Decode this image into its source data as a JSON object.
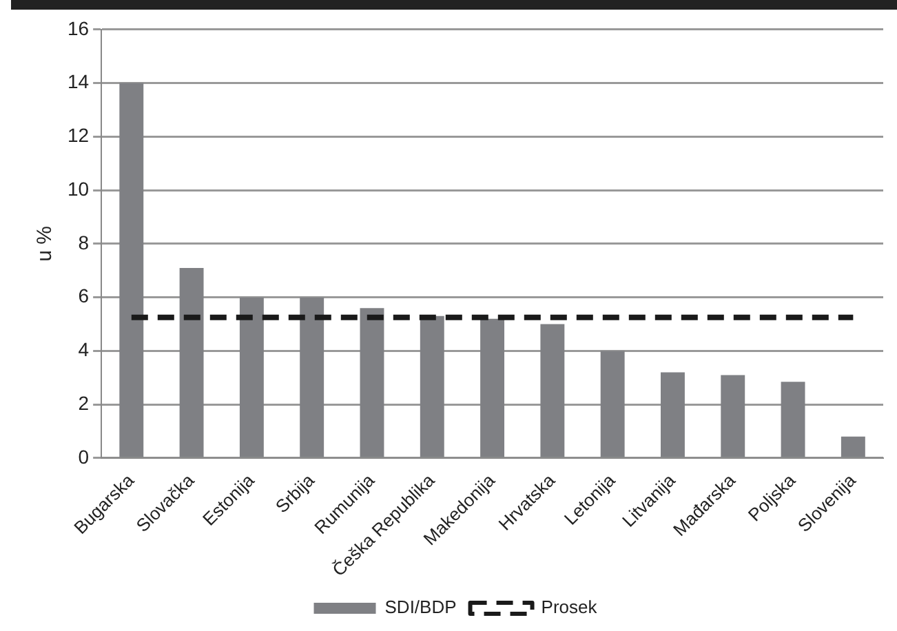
{
  "chart_data": {
    "type": "bar",
    "ylabel": "u %",
    "categories": [
      "Bugarska",
      "Slovačka",
      "Estonija",
      "Srbija",
      "Rumunija",
      "Češka Republika",
      "Makedonija",
      "Hrvatska",
      "Letonija",
      "Litvanija",
      "Mađarska",
      "Poljska",
      "Slovenija"
    ],
    "series": [
      {
        "name": "SDI/BDP",
        "color": "#7f8084",
        "values": [
          14,
          7.1,
          6.0,
          6.0,
          5.6,
          5.3,
          5.2,
          5.0,
          4.0,
          3.2,
          3.1,
          2.85,
          0.8
        ]
      },
      {
        "name": "Prosek",
        "type": "line",
        "color": "#1a1a1a",
        "line_style": "dashed",
        "marker": "none",
        "values": [
          5.25,
          5.25,
          5.25,
          5.25,
          5.25,
          5.25,
          5.25,
          5.25,
          5.25,
          5.25,
          5.25,
          5.25,
          5.25
        ]
      }
    ],
    "ylim": [
      0,
      16
    ],
    "yticks": [
      0,
      2,
      4,
      6,
      8,
      10,
      12,
      14,
      16
    ],
    "grid": "y",
    "legend": "bottom"
  }
}
